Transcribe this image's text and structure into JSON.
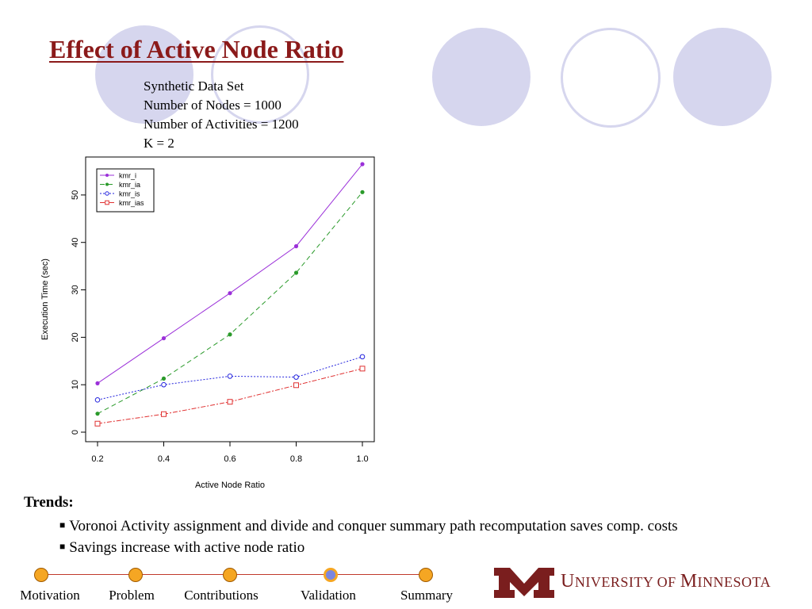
{
  "slide": {
    "title": "Effect of Active Node Ratio",
    "info_lines": [
      "Synthetic Data Set",
      "Number of Nodes = 1000",
      "Number of Activities = 1200",
      "K = 2"
    ],
    "trends_heading": "Trends:",
    "bullets": [
      "Voronoi Activity assignment and divide and conquer summary path recomputation saves comp. costs",
      "Savings increase with active node ratio"
    ],
    "bullet_glyph": "■"
  },
  "nav": {
    "items": [
      {
        "label": "Motivation",
        "current": false
      },
      {
        "label": "Problem",
        "current": false
      },
      {
        "label": "Contributions",
        "current": false
      },
      {
        "label": "Validation",
        "current": true
      },
      {
        "label": "Summary",
        "current": false
      }
    ]
  },
  "logo": {
    "text_first": "U",
    "text_rest": "NIVERSITY OF ",
    "text_first2": "M",
    "text_rest2": "INNESOTA",
    "brand_color": "#7a1e1e"
  },
  "chart_data": {
    "type": "line",
    "xlabel": "Active Node Ratio",
    "ylabel": "Execution Time (sec)",
    "x": [
      0.2,
      0.4,
      0.6,
      0.8,
      1.0
    ],
    "x_ticks": [
      "0.2",
      "0.4",
      "0.6",
      "0.8",
      "1.0"
    ],
    "y_ticks": [
      "0",
      "10",
      "20",
      "30",
      "40",
      "50"
    ],
    "xlim": [
      0.2,
      1.0
    ],
    "ylim": [
      0,
      56
    ],
    "legend_position": "top-left",
    "grid": false,
    "series": [
      {
        "name": "kmr_i",
        "values": [
          10.3,
          19.8,
          29.3,
          39.2,
          56.5
        ],
        "color": "#9b30d9",
        "dash": "",
        "marker": "dot"
      },
      {
        "name": "kmr_ia",
        "values": [
          3.9,
          11.3,
          20.6,
          33.6,
          50.6
        ],
        "color": "#2a9a2a",
        "dash": "6,4",
        "marker": "dot"
      },
      {
        "name": "kmr_is",
        "values": [
          6.8,
          10.0,
          11.8,
          11.6,
          15.9
        ],
        "color": "#2222dd",
        "dash": "2,2",
        "marker": "circle"
      },
      {
        "name": "kmr_ias",
        "values": [
          1.8,
          3.8,
          6.4,
          9.9,
          13.4
        ],
        "color": "#e03030",
        "dash": "6,2,2,2",
        "marker": "square"
      }
    ]
  }
}
